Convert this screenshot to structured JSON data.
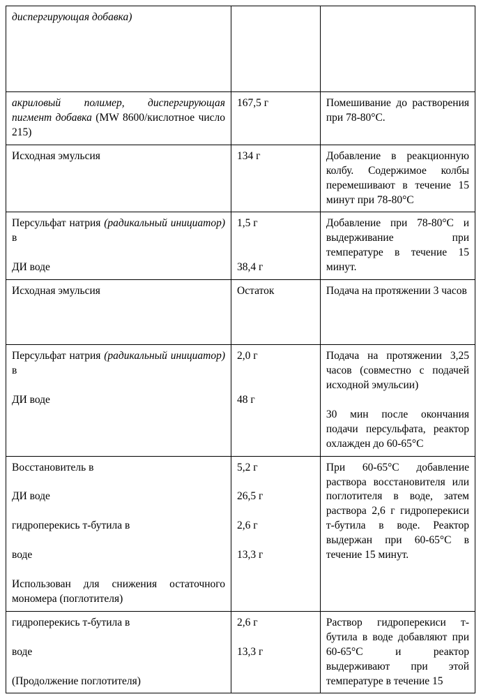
{
  "table": {
    "col_widths": [
      "48%",
      "19%",
      "33%"
    ],
    "border_color": "#000000",
    "background_color": "#ffffff",
    "font_family": "Times New Roman",
    "base_fontsize_pt": 12,
    "rows": [
      {
        "c1": "диспергирующая добавка)",
        "c1_italic_full": true,
        "c2": "",
        "c3": ""
      },
      {
        "c1_parts": [
          {
            "text": "акриловый полимер, диспергирующая пигмент добавка",
            "italic": true
          },
          {
            "text": " (MW 8600/кислотное число 215)",
            "italic": false
          }
        ],
        "c2": "167,5 г",
        "c3": "Помешивание до растворения при 78-80°С."
      },
      {
        "c1": "Исходная эмульсия",
        "c2": "134 г",
        "c3": "Добавление в реакционную колбу. Содержимое колбы перемешивают в течение 15 минут при 78-80°С"
      },
      {
        "c1_parts": [
          {
            "text": "Персульфат натрия ",
            "italic": false
          },
          {
            "text": "(радикальный инициатор)",
            "italic": true
          },
          {
            "text": " в\n\nДИ воде",
            "italic": false
          }
        ],
        "c2": "1,5 г\n\n\n38,4 г",
        "c3": "Добавление при 78-80°С и выдерживание при температуре в течение 15 минут."
      },
      {
        "c1": "Исходная эмульсия",
        "c2": "Остаток",
        "c3": "Подача на протяжении 3 часов"
      },
      {
        "c1_parts": [
          {
            "text": "Персульфат натрия ",
            "italic": false
          },
          {
            "text": "(радикальный инициатор)",
            "italic": true
          },
          {
            "text": " в\n\nДИ воде",
            "italic": false
          }
        ],
        "c2": "2,0 г\n\n\n48 г",
        "c3": "Подача на протяжении 3,25 часов (совместно с подачей исходной эмульсии)\n\n30 мин после окончания подачи персульфата, реактор охлажден до 60-65°С"
      },
      {
        "c1": "Восстановитель в\n\nДИ воде\n\nгидроперекись т-бутила в\n\nводе\n\nИспользован для снижения остаточного мономера (поглотителя)",
        "c2": "5,2 г\n\n26,5 г\n\n2,6 г\n\n13,3 г",
        "c3": "При 60-65°С добавление раствора восстановителя или поглотителя в воде, затем раствора 2,6 г гидроперекиси т-бутила в воде. Реактор выдержан при 60-65°С в течение 15 минут."
      },
      {
        "c1": "гидроперекись т-бутила в\n\nводе\n\n(Продолжение поглотителя)",
        "c2": "2,6 г\n\n13,3 г",
        "c3": "Раствор гидроперекиси т-бутила в воде добавляют при 60-65°С и реактор выдерживают при этой температуре в течение 15"
      }
    ]
  }
}
